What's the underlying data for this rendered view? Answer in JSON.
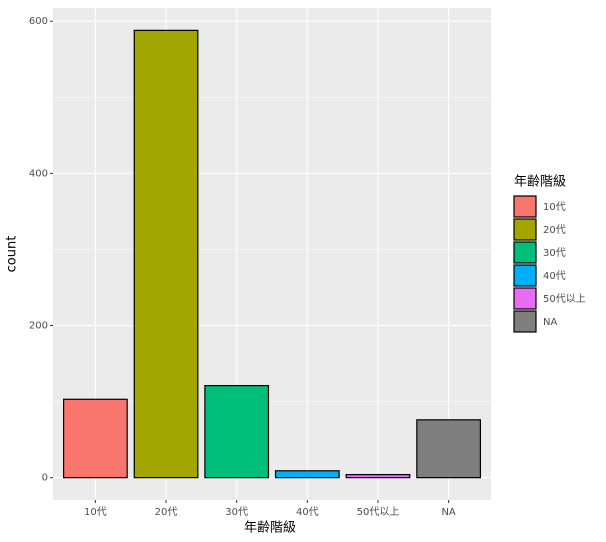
{
  "chart_data": {
    "type": "bar",
    "x_label": "年齢階級",
    "y_label": "count",
    "legend_title": "年齢階級",
    "categories": [
      "10代",
      "20代",
      "30代",
      "40代",
      "50代以上",
      "NA"
    ],
    "values": [
      103,
      588,
      121,
      9,
      4,
      76
    ],
    "colors": [
      "#F8766D",
      "#A3A500",
      "#00BF7D",
      "#00B0F6",
      "#E76BF3",
      "#7F7F7F"
    ],
    "ylim": [
      -29.4,
      617.4
    ],
    "yticks": [
      0,
      200,
      400,
      600
    ],
    "yminor": [
      100,
      300,
      500
    ],
    "grid": true,
    "legend": "right"
  }
}
